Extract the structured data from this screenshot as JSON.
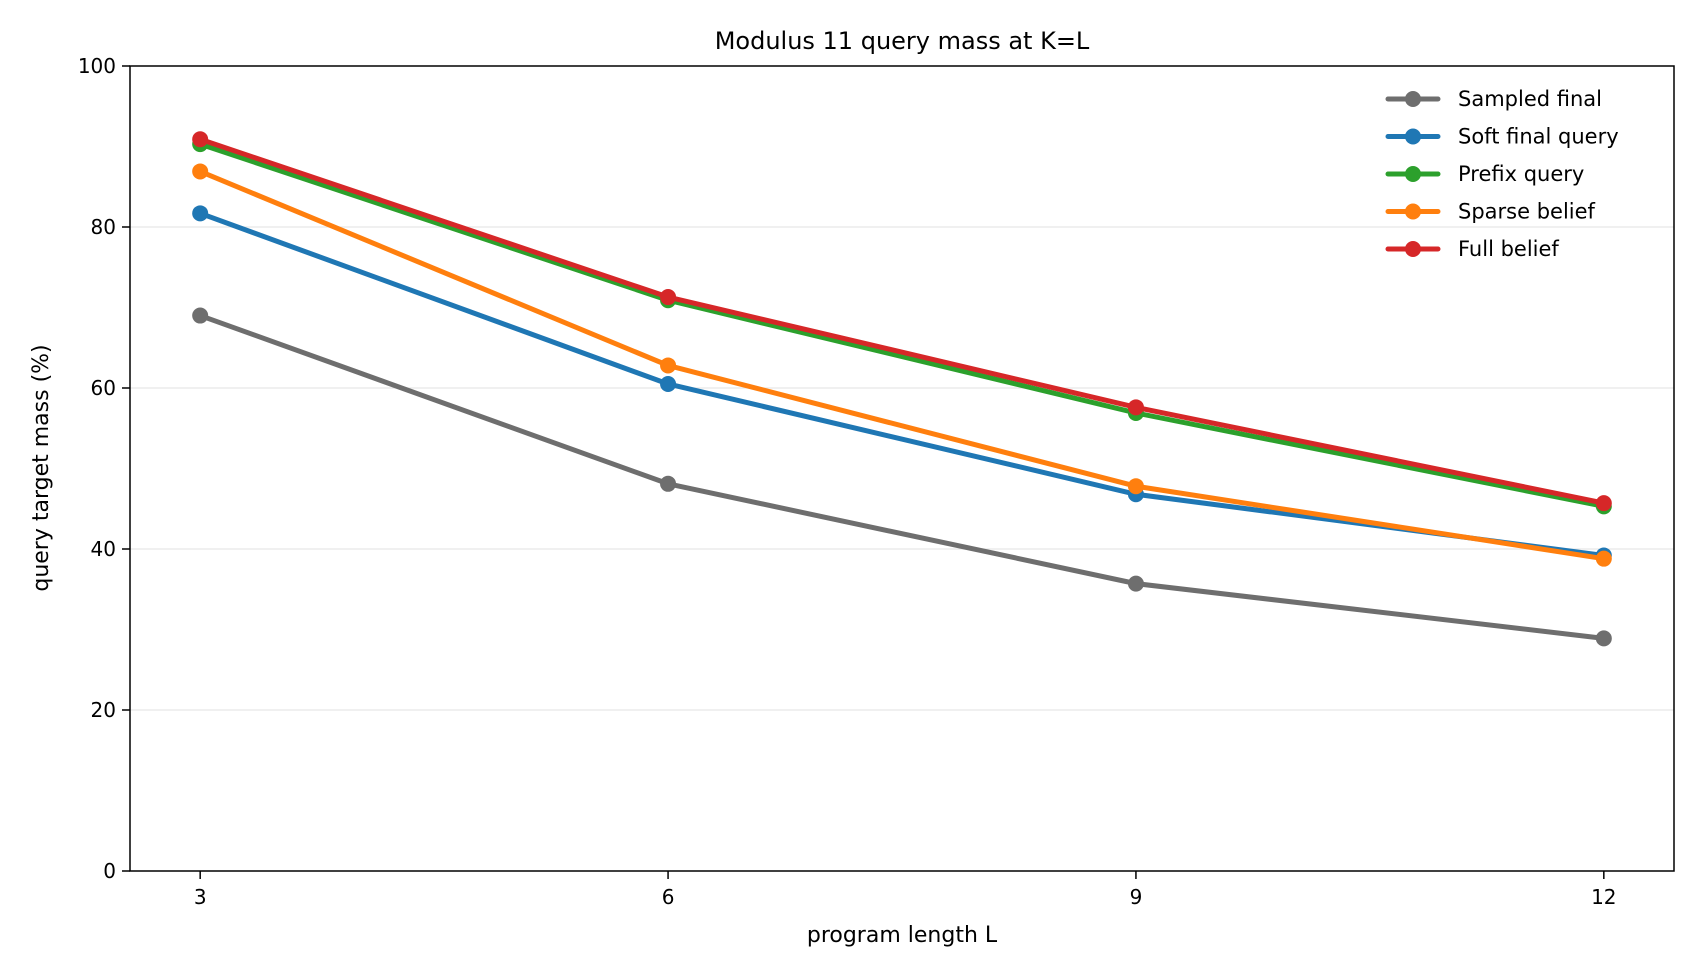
{
  "chart_data": {
    "type": "line",
    "title": "Modulus 11 query mass at K=L",
    "xlabel": "program length L",
    "ylabel": "query target mass (%)",
    "x": [
      3,
      6,
      9,
      12
    ],
    "x_ticks": [
      "3",
      "6",
      "9",
      "12"
    ],
    "y_ticks": [
      "0",
      "20",
      "40",
      "60",
      "80",
      "100"
    ],
    "ylim": [
      0,
      100
    ],
    "grid": "horizontal",
    "legend_position": "top-right",
    "series": [
      {
        "name": "Sampled final",
        "color": "#6e6e6e",
        "values": [
          69.0,
          48.1,
          35.7,
          28.9
        ]
      },
      {
        "name": "Soft final query",
        "color": "#1f77b4",
        "values": [
          81.7,
          60.5,
          46.8,
          39.2
        ]
      },
      {
        "name": "Prefix query",
        "color": "#2ca02c",
        "values": [
          90.3,
          70.9,
          56.9,
          45.3
        ]
      },
      {
        "name": "Sparse belief",
        "color": "#ff7f0e",
        "values": [
          86.9,
          62.8,
          47.8,
          38.8
        ]
      },
      {
        "name": "Full belief",
        "color": "#d62728",
        "values": [
          90.9,
          71.3,
          57.6,
          45.7
        ]
      }
    ]
  }
}
